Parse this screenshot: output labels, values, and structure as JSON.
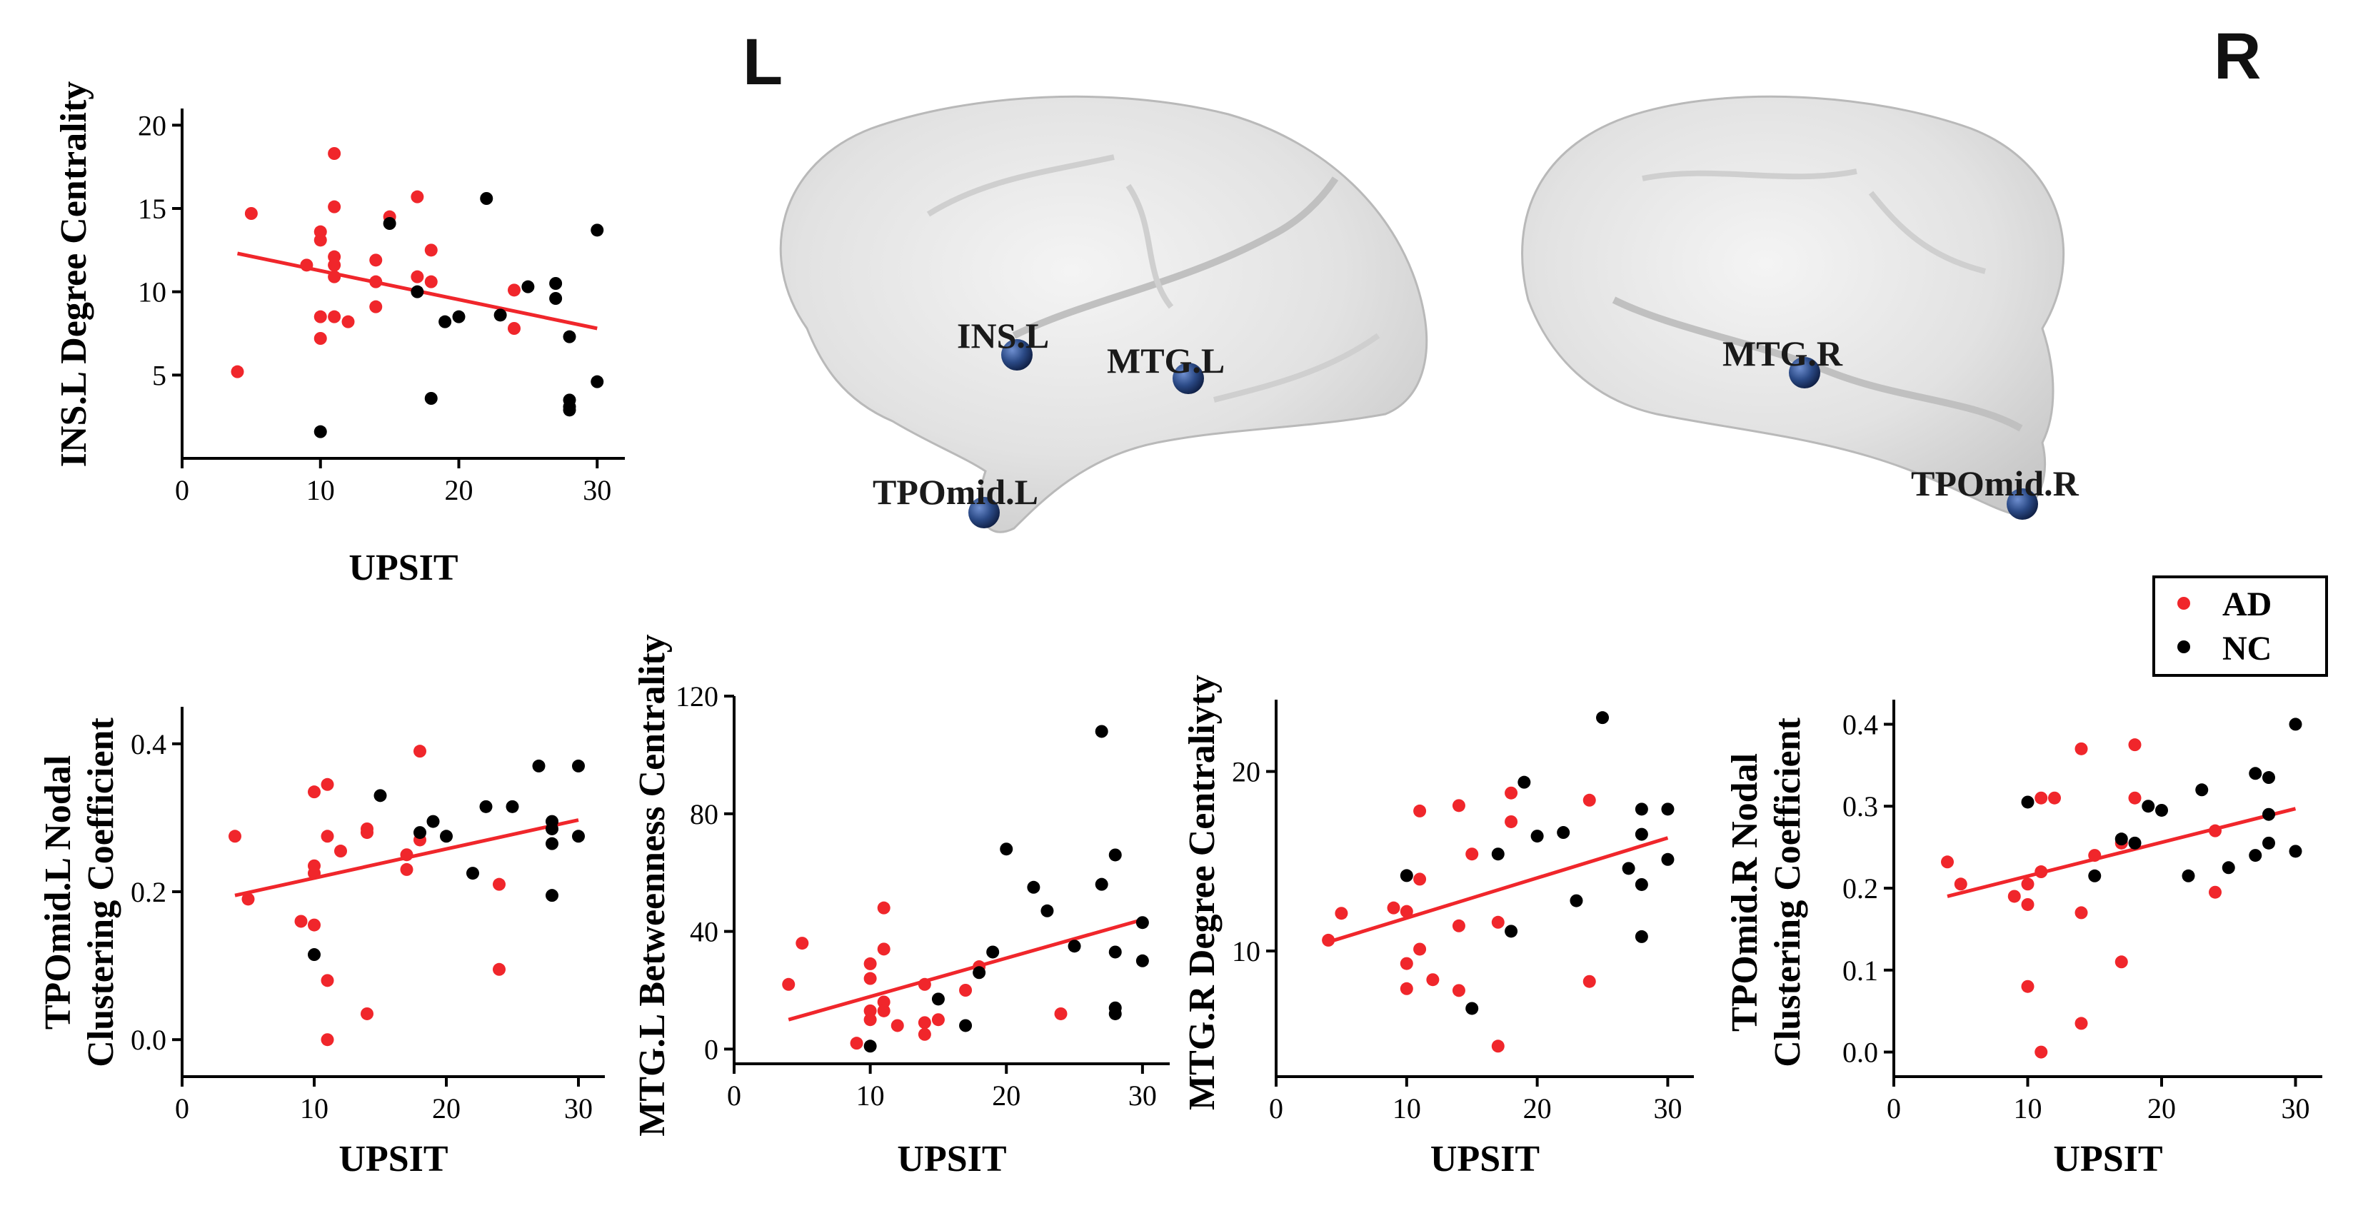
{
  "colors": {
    "ad": "#f0262b",
    "nc": "#000000",
    "node": "#2b4a86"
  },
  "brain": {
    "left_label": "L",
    "right_label": "R",
    "nodes_left": [
      "INS.L",
      "MTG.L",
      "TPOmid.L"
    ],
    "nodes_right": [
      "MTG.R",
      "TPOmid.R"
    ]
  },
  "legend": {
    "ad_label": "AD",
    "nc_label": "NC"
  },
  "chart_data": [
    {
      "type": "scatter",
      "xlabel": "UPSIT",
      "ylabel": [
        "INS.L Degree Centrality"
      ],
      "xlim": [
        0,
        32
      ],
      "ylim": [
        0,
        21
      ],
      "xticks": [
        0,
        10,
        20,
        30
      ],
      "yticks": [
        5,
        10,
        15,
        20
      ],
      "fit": [
        [
          4,
          12.3
        ],
        [
          30,
          7.8
        ]
      ],
      "series": [
        {
          "name": "AD",
          "points": [
            [
              4,
              5.2
            ],
            [
              5,
              14.7
            ],
            [
              9,
              11.6
            ],
            [
              10,
              13.1
            ],
            [
              10,
              13.6
            ],
            [
              10,
              8.5
            ],
            [
              10,
              7.2
            ],
            [
              11,
              18.3
            ],
            [
              11,
              15.1
            ],
            [
              11,
              12.1
            ],
            [
              11,
              11.6
            ],
            [
              11,
              10.9
            ],
            [
              11,
              8.5
            ],
            [
              12,
              8.2
            ],
            [
              14,
              11.9
            ],
            [
              14,
              10.6
            ],
            [
              14,
              9.1
            ],
            [
              15,
              14.5
            ],
            [
              17,
              15.7
            ],
            [
              17,
              10.9
            ],
            [
              18,
              12.5
            ],
            [
              18,
              10.6
            ],
            [
              24,
              10.1
            ],
            [
              24,
              7.8
            ]
          ]
        },
        {
          "name": "NC",
          "points": [
            [
              10,
              1.6
            ],
            [
              15,
              14.1
            ],
            [
              17,
              10.0
            ],
            [
              18,
              3.6
            ],
            [
              19,
              8.2
            ],
            [
              20,
              8.5
            ],
            [
              22,
              15.6
            ],
            [
              23,
              8.6
            ],
            [
              25,
              10.3
            ],
            [
              27,
              10.5
            ],
            [
              27,
              9.6
            ],
            [
              28,
              7.3
            ],
            [
              28,
              3.5
            ],
            [
              28,
              3.1
            ],
            [
              28,
              2.9
            ],
            [
              30,
              13.7
            ],
            [
              30,
              4.6
            ]
          ]
        }
      ]
    },
    {
      "type": "scatter",
      "xlabel": "UPSIT",
      "ylabel": [
        "TPOmid.L Nodal",
        "Clustering Coefficient"
      ],
      "xlim": [
        0,
        32
      ],
      "ylim": [
        -0.05,
        0.45
      ],
      "xticks": [
        0,
        10,
        20,
        30
      ],
      "yticks": [
        0.0,
        0.2,
        0.4
      ],
      "ytick_labels": [
        "0.0",
        "0.2",
        "0.4"
      ],
      "fit": [
        [
          4,
          0.195
        ],
        [
          30,
          0.297
        ]
      ],
      "series": [
        {
          "name": "AD",
          "points": [
            [
              4,
              0.275
            ],
            [
              5,
              0.19
            ],
            [
              9,
              0.16
            ],
            [
              10,
              0.155
            ],
            [
              10,
              0.235
            ],
            [
              10,
              0.225
            ],
            [
              10,
              0.335
            ],
            [
              11,
              0.345
            ],
            [
              11,
              0.275
            ],
            [
              11,
              0.08
            ],
            [
              11,
              0.0
            ],
            [
              12,
              0.255
            ],
            [
              14,
              0.285
            ],
            [
              14,
              0.28
            ],
            [
              14,
              0.035
            ],
            [
              17,
              0.25
            ],
            [
              17,
              0.23
            ],
            [
              18,
              0.39
            ],
            [
              18,
              0.27
            ],
            [
              24,
              0.21
            ],
            [
              24,
              0.095
            ]
          ]
        },
        {
          "name": "NC",
          "points": [
            [
              10,
              0.115
            ],
            [
              15,
              0.33
            ],
            [
              18,
              0.28
            ],
            [
              19,
              0.295
            ],
            [
              20,
              0.275
            ],
            [
              22,
              0.225
            ],
            [
              23,
              0.315
            ],
            [
              25,
              0.315
            ],
            [
              27,
              0.37
            ],
            [
              28,
              0.295
            ],
            [
              28,
              0.285
            ],
            [
              28,
              0.265
            ],
            [
              28,
              0.195
            ],
            [
              30,
              0.37
            ],
            [
              30,
              0.275
            ]
          ]
        }
      ]
    },
    {
      "type": "scatter",
      "xlabel": "UPSIT",
      "ylabel": [
        "MTG.L Betweenness Centrality"
      ],
      "xlim": [
        0,
        32
      ],
      "ylim": [
        -5,
        120
      ],
      "xticks": [
        0,
        10,
        20,
        30
      ],
      "yticks": [
        0,
        40,
        80,
        120
      ],
      "fit": [
        [
          4,
          10
        ],
        [
          30,
          44
        ]
      ],
      "series": [
        {
          "name": "AD",
          "points": [
            [
              4,
              22
            ],
            [
              5,
              36
            ],
            [
              9,
              2
            ],
            [
              10,
              29
            ],
            [
              10,
              24
            ],
            [
              10,
              13
            ],
            [
              10,
              10
            ],
            [
              11,
              48
            ],
            [
              11,
              34
            ],
            [
              11,
              16
            ],
            [
              11,
              13
            ],
            [
              12,
              8
            ],
            [
              14,
              22
            ],
            [
              14,
              9
            ],
            [
              14,
              5
            ],
            [
              15,
              10
            ],
            [
              17,
              20
            ],
            [
              18,
              28
            ],
            [
              24,
              12
            ]
          ]
        },
        {
          "name": "NC",
          "points": [
            [
              10,
              1
            ],
            [
              15,
              17
            ],
            [
              17,
              8
            ],
            [
              18,
              26
            ],
            [
              19,
              33
            ],
            [
              20,
              68
            ],
            [
              22,
              55
            ],
            [
              23,
              47
            ],
            [
              25,
              35
            ],
            [
              27,
              108
            ],
            [
              27,
              56
            ],
            [
              28,
              66
            ],
            [
              28,
              33
            ],
            [
              28,
              14
            ],
            [
              28,
              12
            ],
            [
              30,
              43
            ],
            [
              30,
              30
            ]
          ]
        }
      ]
    },
    {
      "type": "scatter",
      "xlabel": "UPSIT",
      "ylabel": [
        "MTG.R Degree Centraliyty"
      ],
      "xlim": [
        0,
        32
      ],
      "ylim": [
        3,
        24
      ],
      "xticks": [
        0,
        10,
        20,
        30
      ],
      "yticks": [
        10,
        20
      ],
      "fit": [
        [
          4,
          10.5
        ],
        [
          30,
          16.3
        ]
      ],
      "series": [
        {
          "name": "AD",
          "points": [
            [
              4,
              10.6
            ],
            [
              5,
              12.1
            ],
            [
              9,
              12.4
            ],
            [
              10,
              12.2
            ],
            [
              10,
              9.3
            ],
            [
              10,
              7.9
            ],
            [
              11,
              17.8
            ],
            [
              11,
              10.1
            ],
            [
              11,
              14.0
            ],
            [
              12,
              8.4
            ],
            [
              14,
              18.1
            ],
            [
              14,
              11.4
            ],
            [
              14,
              7.8
            ],
            [
              15,
              15.4
            ],
            [
              17,
              11.6
            ],
            [
              17,
              4.7
            ],
            [
              18,
              18.8
            ],
            [
              18,
              17.2
            ],
            [
              24,
              18.4
            ],
            [
              24,
              8.3
            ]
          ]
        },
        {
          "name": "NC",
          "points": [
            [
              10,
              14.2
            ],
            [
              15,
              6.8
            ],
            [
              17,
              15.4
            ],
            [
              18,
              11.1
            ],
            [
              19,
              19.4
            ],
            [
              20,
              16.4
            ],
            [
              22,
              16.6
            ],
            [
              23,
              12.8
            ],
            [
              25,
              23.0
            ],
            [
              27,
              14.6
            ],
            [
              28,
              17.9
            ],
            [
              28,
              16.5
            ],
            [
              28,
              13.7
            ],
            [
              28,
              10.8
            ],
            [
              30,
              17.9
            ],
            [
              30,
              15.1
            ]
          ]
        }
      ]
    },
    {
      "type": "scatter",
      "xlabel": "UPSIT",
      "ylabel": [
        "TPOmid.R Nodal",
        "Clustering Coefficient"
      ],
      "xlim": [
        0,
        32
      ],
      "ylim": [
        -0.03,
        0.43
      ],
      "xticks": [
        0,
        10,
        20,
        30
      ],
      "yticks": [
        0.0,
        0.1,
        0.2,
        0.3,
        0.4
      ],
      "ytick_labels": [
        "0.0",
        "0.1",
        "0.2",
        "0.3",
        "0.4"
      ],
      "fit": [
        [
          4,
          0.19
        ],
        [
          30,
          0.297
        ]
      ],
      "series": [
        {
          "name": "AD",
          "points": [
            [
              4,
              0.232
            ],
            [
              5,
              0.205
            ],
            [
              9,
              0.19
            ],
            [
              10,
              0.205
            ],
            [
              10,
              0.18
            ],
            [
              10,
              0.08
            ],
            [
              11,
              0.31
            ],
            [
              11,
              0.22
            ],
            [
              11,
              0.0
            ],
            [
              12,
              0.31
            ],
            [
              14,
              0.37
            ],
            [
              14,
              0.17
            ],
            [
              14,
              0.035
            ],
            [
              15,
              0.24
            ],
            [
              17,
              0.11
            ],
            [
              17,
              0.255
            ],
            [
              18,
              0.375
            ],
            [
              18,
              0.31
            ],
            [
              24,
              0.27
            ],
            [
              24,
              0.195
            ]
          ]
        },
        {
          "name": "NC",
          "points": [
            [
              10,
              0.305
            ],
            [
              15,
              0.215
            ],
            [
              17,
              0.26
            ],
            [
              18,
              0.255
            ],
            [
              19,
              0.3
            ],
            [
              20,
              0.295
            ],
            [
              22,
              0.215
            ],
            [
              23,
              0.32
            ],
            [
              25,
              0.225
            ],
            [
              27,
              0.34
            ],
            [
              27,
              0.24
            ],
            [
              28,
              0.335
            ],
            [
              28,
              0.29
            ],
            [
              28,
              0.255
            ],
            [
              30,
              0.4
            ],
            [
              30,
              0.245
            ]
          ]
        }
      ]
    }
  ]
}
